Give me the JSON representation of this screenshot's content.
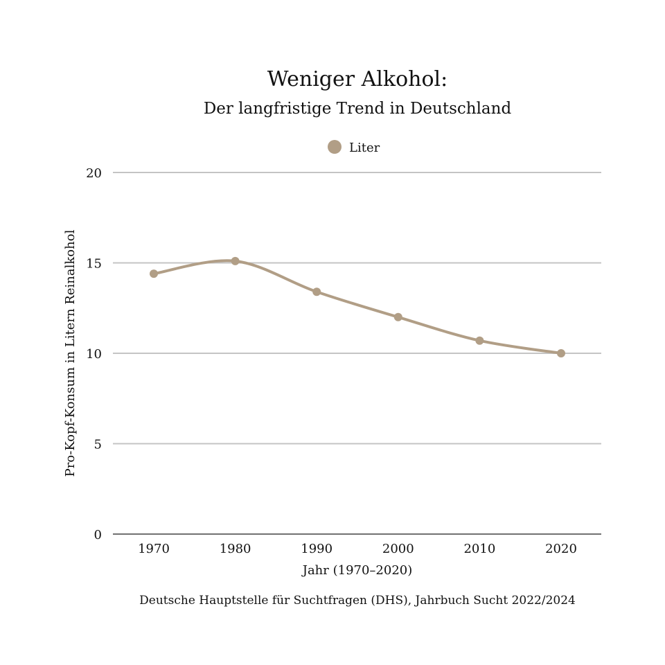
{
  "chart_data": {
    "type": "line",
    "title": "Weniger Alkohol:",
    "subtitle": "Der langfristige Trend in Deutschland",
    "xlabel": "Jahr (1970–2020)",
    "ylabel": "Pro-Kopf-Konsum in Litern Reinalkohol",
    "source": "Deutsche Hauptstelle für Suchtfragen (DHS), Jahrbuch Sucht 2022/2024",
    "categories": [
      "1970",
      "1980",
      "1990",
      "2000",
      "2010",
      "2020"
    ],
    "series": [
      {
        "name": "Liter",
        "color": "#b19e86",
        "values": [
          14.4,
          15.1,
          13.4,
          12.0,
          10.7,
          10.0
        ]
      }
    ],
    "ylim": [
      0,
      20
    ],
    "yticks": [
      0,
      5,
      10,
      15,
      20
    ],
    "grid": true,
    "legend_position": "top-center",
    "curve": "smooth"
  }
}
